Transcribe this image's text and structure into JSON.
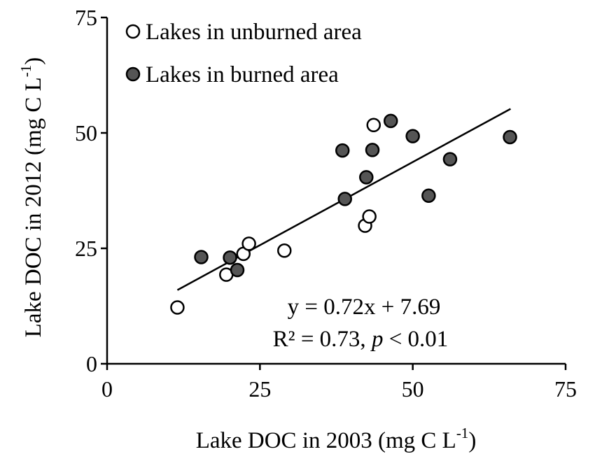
{
  "chart_data": {
    "type": "scatter",
    "xlabel": "Lake DOC in 2003 (mg C L",
    "xlabel_sup": "-1",
    "xlabel_end": ")",
    "ylabel": "Lake DOC in 2012 (mg C L",
    "ylabel_sup": "-1",
    "ylabel_end": ")",
    "xlim": [
      0,
      75
    ],
    "ylim": [
      0,
      75
    ],
    "x_ticks": [
      0,
      25,
      50,
      75
    ],
    "y_ticks": [
      0,
      25,
      50,
      75
    ],
    "grid": false,
    "legend_position": "top-left",
    "series": [
      {
        "name": "Lakes in unburned area",
        "marker_fill": "#ffffff",
        "marker_stroke": "#000000",
        "x": [
          11.5,
          19.5,
          22.3,
          23.2,
          29.0,
          42.2,
          42.9,
          43.6
        ],
        "y": [
          12.2,
          19.3,
          23.8,
          26.0,
          24.5,
          29.9,
          31.9,
          51.7
        ]
      },
      {
        "name": "Lakes in burned area",
        "marker_fill": "#555555",
        "marker_stroke": "#000000",
        "x": [
          15.4,
          20.1,
          21.3,
          38.5,
          38.9,
          42.4,
          43.4,
          46.4,
          50.0,
          52.6,
          56.1,
          65.9
        ],
        "y": [
          23.1,
          23.0,
          20.3,
          46.2,
          35.7,
          40.4,
          46.3,
          52.6,
          49.3,
          36.4,
          44.3,
          49.1
        ]
      }
    ],
    "trendline": {
      "slope": 0.72,
      "intercept": 7.69,
      "x_range": [
        11.5,
        66
      ]
    },
    "annotations": {
      "equation": "y = 0.72x + 7.69",
      "r2_prefix": "R² = 0.73, ",
      "r2_p": "p",
      "r2_suffix": " < 0.01"
    }
  }
}
